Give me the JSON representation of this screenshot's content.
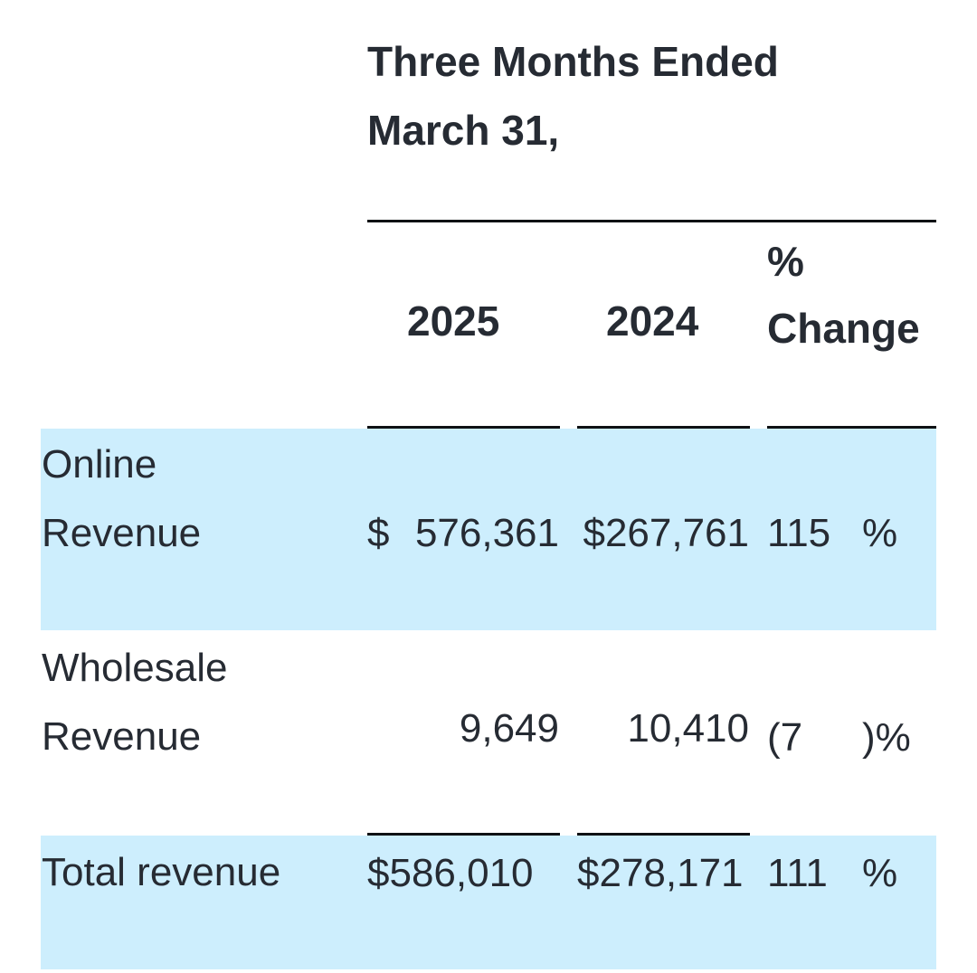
{
  "header": {
    "period_line1": "Three Months Ended",
    "period_line2": "March 31,",
    "col_2025": "2025",
    "col_2024": "2024",
    "col_change_line1": "%",
    "col_change_line2": "Change"
  },
  "rows": [
    {
      "label_line1": "Online",
      "label_line2": "Revenue",
      "cur_2025": "$",
      "val_2025": "576,361",
      "val_2024": "$267,761",
      "change_value": "115",
      "change_suffix": "%"
    },
    {
      "label_line1": "Wholesale",
      "label_line2": "Revenue",
      "val_2025": "9,649",
      "val_2024": "10,410",
      "change_value": "(7",
      "change_suffix": ")%"
    },
    {
      "label": "Total revenue",
      "val_2025": "$586,010",
      "val_2024": "$278,171",
      "change_value": "111",
      "change_suffix": "%"
    }
  ]
}
